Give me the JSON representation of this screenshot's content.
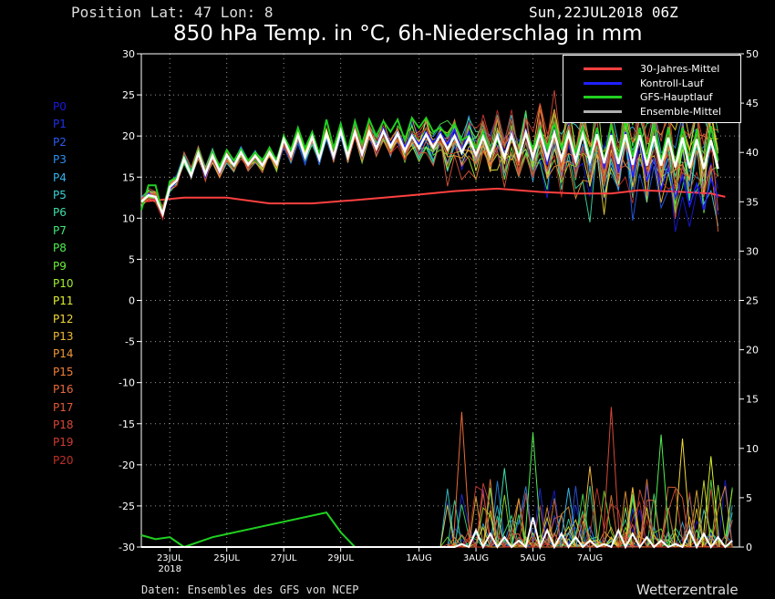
{
  "header": {
    "position": "Position  Lat: 47 Lon: 8",
    "date": "Sun,22JUL2018 06Z",
    "title": "850 hPa Temp. in °C, 6h-Niederschlag in mm"
  },
  "footer": {
    "source": "Daten: Ensembles des GFS von NCEP",
    "brand": "Wetterzentrale"
  },
  "members": [
    {
      "label": "P0",
      "color": "#1a1adc"
    },
    {
      "label": "P1",
      "color": "#2030e8"
    },
    {
      "label": "P2",
      "color": "#2a5cf0"
    },
    {
      "label": "P3",
      "color": "#2f8ef0"
    },
    {
      "label": "P4",
      "color": "#32b4e8"
    },
    {
      "label": "P5",
      "color": "#3cd2d8"
    },
    {
      "label": "P6",
      "color": "#3ce0a8"
    },
    {
      "label": "P7",
      "color": "#40e878"
    },
    {
      "label": "P8",
      "color": "#50ee50"
    },
    {
      "label": "P9",
      "color": "#70ee38"
    },
    {
      "label": "P10",
      "color": "#a0f030"
    },
    {
      "label": "P11",
      "color": "#e0f030"
    },
    {
      "label": "P12",
      "color": "#f0d838"
    },
    {
      "label": "P13",
      "color": "#f0b838"
    },
    {
      "label": "P14",
      "color": "#f09a38"
    },
    {
      "label": "P15",
      "color": "#f08038"
    },
    {
      "label": "P16",
      "color": "#e86a38"
    },
    {
      "label": "P17",
      "color": "#e05838"
    },
    {
      "label": "P18",
      "color": "#d84838"
    },
    {
      "label": "P19",
      "color": "#d03c30"
    },
    {
      "label": "P20",
      "color": "#c03028"
    }
  ],
  "legend": [
    {
      "label": "30-Jahres-Mittel",
      "color": "#ff4040"
    },
    {
      "label": "Kontroll-Lauf",
      "color": "#2020ff"
    },
    {
      "label": "GFS-Hauptlauf",
      "color": "#20d020"
    },
    {
      "label": "Ensemble-Mittel",
      "color": "#b0b0b0"
    }
  ],
  "chart_data": {
    "type": "line",
    "x_ticks": [
      "23JUL",
      "25JUL",
      "27JUL",
      "29JUL",
      "1AUG",
      "3AUG",
      "5AUG",
      "7AUG"
    ],
    "x_year_label": "2018",
    "x_step_hours": 6,
    "y_left": {
      "min": -30,
      "max": 30,
      "ticks": [
        -30,
        -25,
        -20,
        -15,
        -10,
        -5,
        0,
        5,
        10,
        15,
        20,
        25,
        30
      ]
    },
    "y_right": {
      "min": 0,
      "max": 50,
      "ticks": [
        0,
        5,
        10,
        15,
        20,
        25,
        30,
        35,
        40,
        45,
        50
      ]
    },
    "grid": true,
    "legend_position": "top-right",
    "temperature": {
      "climate_mean": {
        "x": [
          0,
          6,
          12,
          18,
          24,
          30,
          38,
          44,
          50,
          56,
          61,
          66,
          70,
          76,
          80,
          82
        ],
        "y": [
          12,
          12.5,
          12.5,
          11.8,
          11.8,
          12.2,
          12.8,
          13.3,
          13.6,
          13.2,
          13,
          13,
          13.4,
          13.2,
          13,
          12.6
        ]
      },
      "gfs_main": [
        11,
        14,
        14,
        10.5,
        14.5,
        15,
        17.5,
        15.5,
        18.3,
        15.5,
        18,
        16.3,
        18.3,
        17,
        18.4,
        17,
        18,
        17,
        18.6,
        17,
        20,
        18.3,
        21,
        18.5,
        20.5,
        17.8,
        22,
        18.5,
        21.5,
        18.2,
        21.8,
        19,
        22,
        20,
        21.8,
        20.5,
        22,
        19.5,
        22.2,
        21,
        22.2,
        20.5,
        21,
        20,
        21.5,
        19.5,
        20,
        18.5,
        20.5,
        18,
        19.5,
        17.6,
        19.8,
        17.8,
        20.5,
        18.5,
        21,
        18.5,
        21.5,
        18.5,
        20.5,
        18,
        21,
        17.5,
        21,
        17,
        21.5,
        17.2,
        22,
        17.5,
        21,
        17,
        21.5,
        17,
        21,
        16.5,
        21,
        16.8,
        20.8,
        16,
        21.2,
        17
      ],
      "control": [
        12,
        13,
        12.5,
        10.5,
        13.5,
        14.5,
        17.5,
        15,
        17.8,
        15,
        17.5,
        15.5,
        17.5,
        16.5,
        17.9,
        16.5,
        17.5,
        16.5,
        18,
        16.8,
        19.5,
        17.5,
        20,
        17.3,
        19.8,
        16.8,
        20.5,
        17.2,
        20.8,
        17.5,
        20.5,
        17.5,
        20.5,
        18.8,
        21,
        19,
        20.5,
        18.7,
        20.2,
        19,
        20.5,
        19.2,
        20.5,
        19,
        20.8,
        18.2,
        20.5,
        17.5,
        20,
        17.8,
        20.2,
        17.8,
        20.5,
        17.5,
        20.8,
        17,
        20.5,
        16.5,
        20.7,
        17,
        20.5,
        16.8,
        20.5,
        16.5,
        20.5,
        16,
        20.3,
        15.5,
        20.5,
        15,
        19.8,
        14.5,
        17.2,
        13.5,
        16.2,
        12.5,
        15.2,
        11.5,
        14.2,
        11,
        14.8,
        12.5
      ],
      "ensemble_mean": [
        12,
        12.8,
        12.6,
        10.5,
        13.8,
        14.6,
        17.2,
        15.2,
        17.9,
        15.4,
        17.6,
        15.7,
        17.7,
        16.4,
        18,
        16.5,
        17.6,
        16.4,
        18,
        16.6,
        19.6,
        17.6,
        20.1,
        17.5,
        19.9,
        17.2,
        20.3,
        17.5,
        20.6,
        17.5,
        20.5,
        17.8,
        20.5,
        18.5,
        20.6,
        18.7,
        20.3,
        18.2,
        20,
        18.5,
        20.2,
        18.6,
        20.1,
        18.4,
        20,
        18,
        19.8,
        17.7,
        19.9,
        17.6,
        20,
        17.4,
        20.1,
        17.3,
        20.4,
        17.4,
        20.4,
        17.3,
        20.4,
        17.2,
        20.3,
        17,
        20.2,
        16.9,
        20.2,
        16.7,
        20.1,
        16.6,
        20.2,
        16.5,
        20.1,
        16.4,
        20,
        16.4,
        19.8,
        16.2,
        19.8,
        16.1,
        19.6,
        16,
        19.5,
        16
      ]
    },
    "precip_gfs_main": {
      "x": [
        0,
        2,
        4,
        6,
        10,
        26,
        28,
        30
      ],
      "y": [
        1.2,
        0.8,
        1,
        0,
        1,
        3.5,
        1.5,
        0
      ]
    },
    "precip_peaks_mm": [
      {
        "x": 45,
        "y": 13.7
      },
      {
        "x": 51,
        "y": 8
      },
      {
        "x": 55,
        "y": 11.6
      },
      {
        "x": 60,
        "y": 6
      },
      {
        "x": 63,
        "y": 8.2
      },
      {
        "x": 66,
        "y": 14.2
      },
      {
        "x": 73,
        "y": 11.4
      },
      {
        "x": 76,
        "y": 11
      },
      {
        "x": 80,
        "y": 9.2
      }
    ]
  }
}
